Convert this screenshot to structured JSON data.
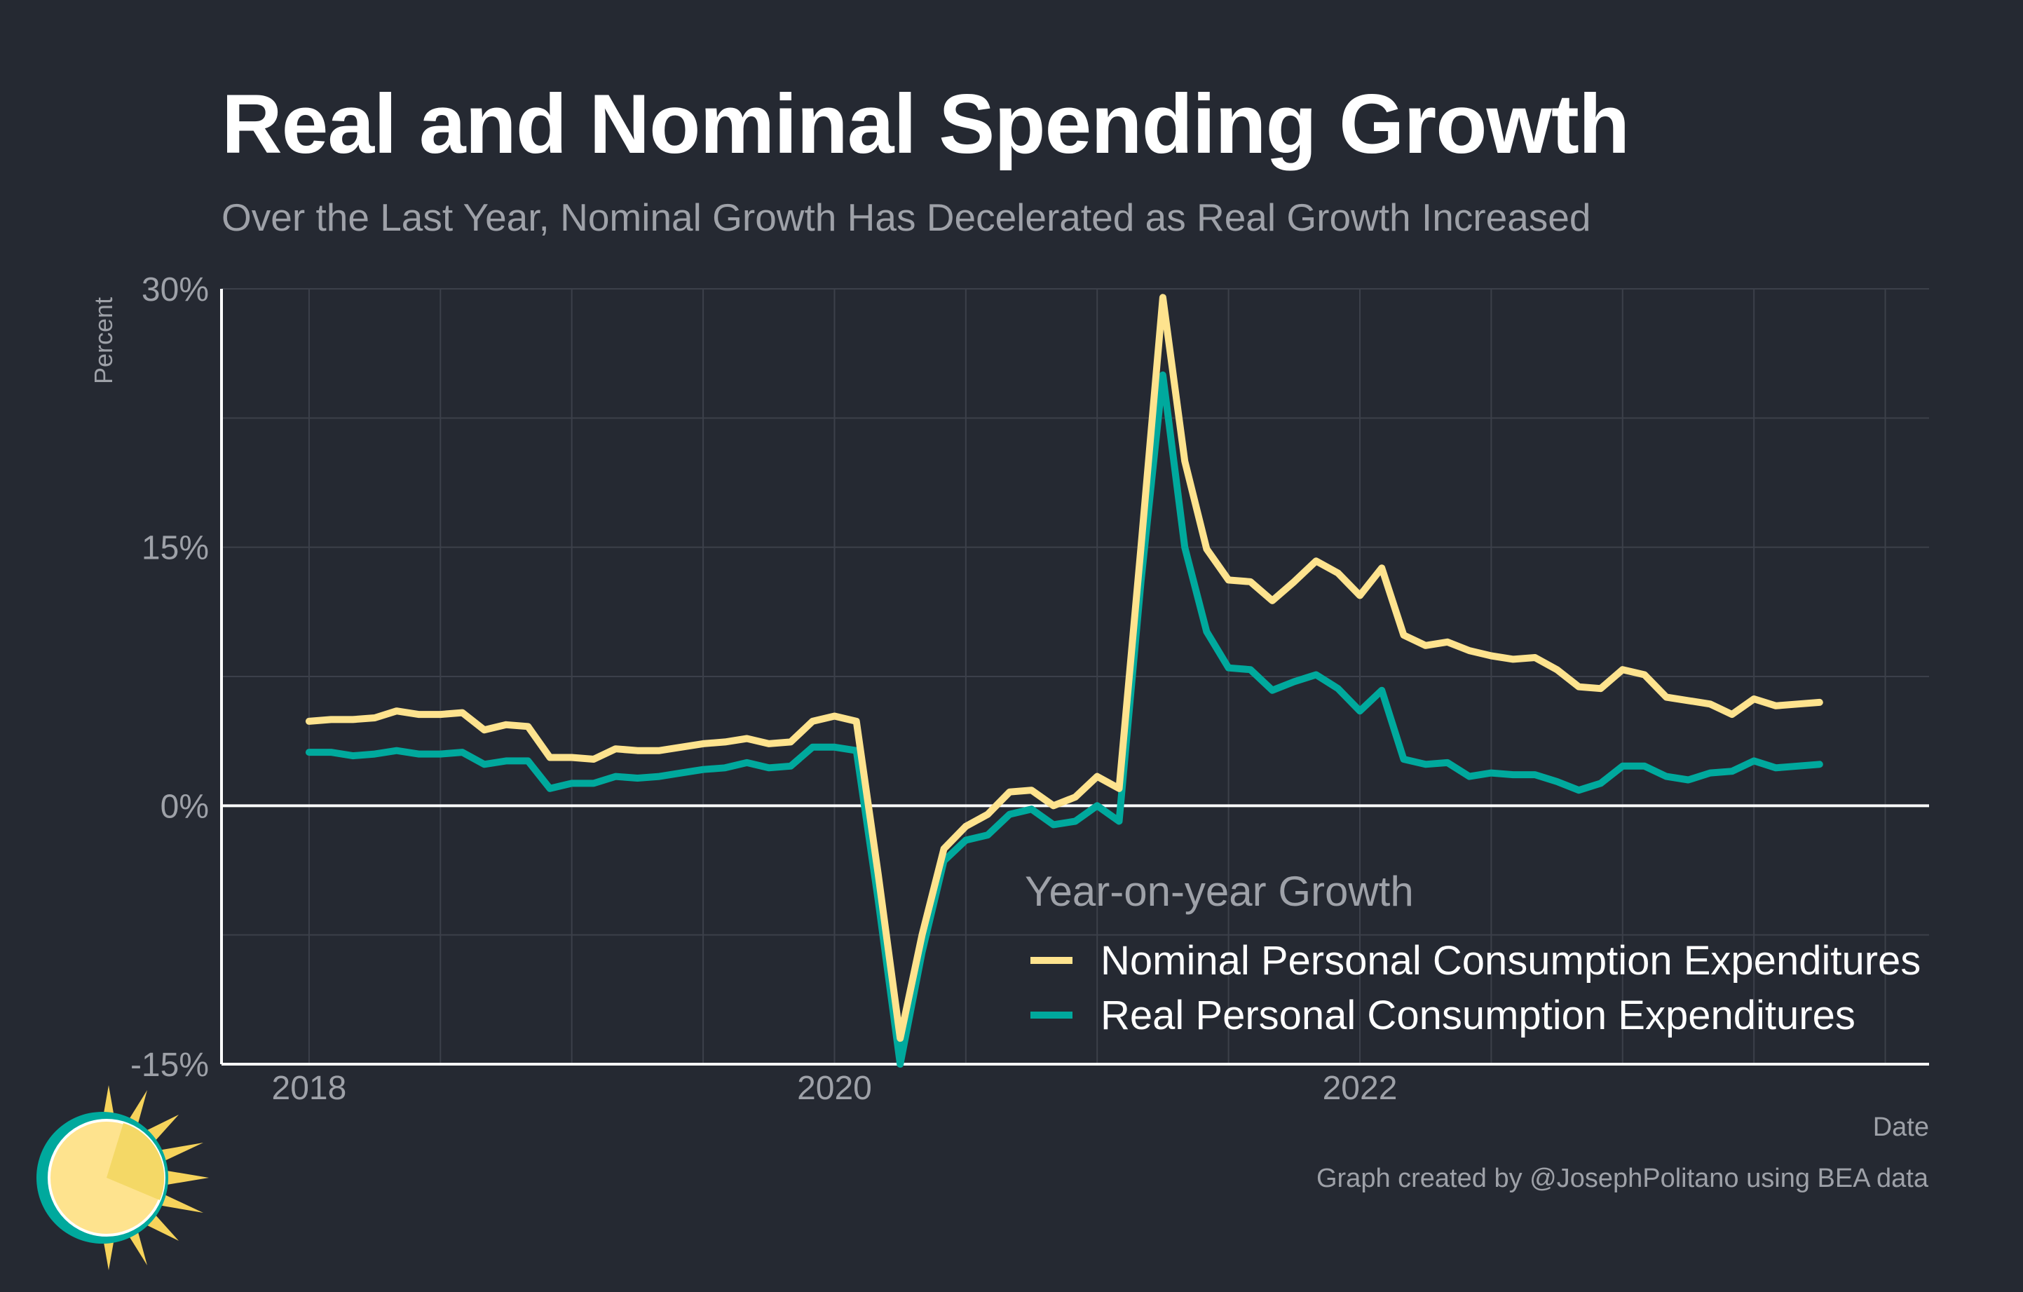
{
  "title": "Real and Nominal Spending Growth",
  "subtitle": "Over the Last Year, Nominal Growth Has Decelerated as Real Growth Increased",
  "caption": "Graph created by @JosephPolitano using BEA data",
  "logo_icon": "sun-icon",
  "colors": {
    "background": "#252932",
    "nominal": "#FEE38E",
    "real": "#00A99D",
    "grid": "#3c404a",
    "zero_line": "#ffffff",
    "text_muted": "#9ea1a8"
  },
  "chart_data": {
    "type": "line",
    "title": "Real and Nominal Spending Growth",
    "subtitle": "Over the Last Year, Nominal Growth Has Decelerated as Real Growth Increased",
    "xlabel": "Date",
    "ylabel": "Percent",
    "ylim": [
      -15,
      30
    ],
    "xlim": [
      "2017-09",
      "2024-03"
    ],
    "y_ticks": [
      {
        "value": 30,
        "label": "30%"
      },
      {
        "value": 15,
        "label": "15%"
      },
      {
        "value": 0,
        "label": "0%"
      },
      {
        "value": -15,
        "label": "-15%"
      }
    ],
    "x_ticks": [
      {
        "date": "2018-01",
        "label": "2018"
      },
      {
        "date": "2020-01",
        "label": "2020"
      },
      {
        "date": "2022-01",
        "label": "2022"
      }
    ],
    "grid": true,
    "legend": {
      "title": "Year-on-year Growth",
      "position": "bottom-right"
    },
    "x": [
      "2018-01",
      "2018-02",
      "2018-03",
      "2018-04",
      "2018-05",
      "2018-06",
      "2018-07",
      "2018-08",
      "2018-09",
      "2018-10",
      "2018-11",
      "2018-12",
      "2019-01",
      "2019-02",
      "2019-03",
      "2019-04",
      "2019-05",
      "2019-06",
      "2019-07",
      "2019-08",
      "2019-09",
      "2019-10",
      "2019-11",
      "2019-12",
      "2020-01",
      "2020-02",
      "2020-03",
      "2020-04",
      "2020-05",
      "2020-06",
      "2020-07",
      "2020-08",
      "2020-09",
      "2020-10",
      "2020-11",
      "2020-12",
      "2021-01",
      "2021-02",
      "2021-03",
      "2021-04",
      "2021-05",
      "2021-06",
      "2021-07",
      "2021-08",
      "2021-09",
      "2021-10",
      "2021-11",
      "2021-12",
      "2022-01",
      "2022-02",
      "2022-03",
      "2022-04",
      "2022-05",
      "2022-06",
      "2022-07",
      "2022-08",
      "2022-09",
      "2022-10",
      "2022-11",
      "2022-12",
      "2023-01",
      "2023-02",
      "2023-03",
      "2023-04",
      "2023-05",
      "2023-06",
      "2023-07",
      "2023-08",
      "2023-09",
      "2023-10"
    ],
    "series": [
      {
        "name": "Nominal Personal Consumption Expenditures",
        "color": "#FEE38E",
        "values": [
          4.9,
          5.0,
          5.0,
          5.1,
          5.5,
          5.3,
          5.3,
          5.4,
          4.4,
          4.7,
          4.6,
          2.8,
          2.8,
          2.7,
          3.3,
          3.2,
          3.2,
          3.4,
          3.6,
          3.7,
          3.9,
          3.6,
          3.7,
          4.9,
          5.2,
          4.9,
          -4.0,
          -13.5,
          -7.5,
          -2.5,
          -1.2,
          -0.5,
          0.8,
          0.9,
          0.0,
          0.5,
          1.7,
          1.0,
          15.0,
          29.5,
          20.0,
          14.9,
          13.1,
          13.0,
          11.9,
          13.0,
          14.2,
          13.5,
          12.2,
          13.8,
          9.9,
          9.3,
          9.5,
          9.0,
          8.7,
          8.5,
          8.6,
          7.9,
          6.9,
          6.8,
          7.9,
          7.6,
          6.3,
          6.1,
          5.9,
          5.3,
          6.2,
          5.8,
          5.9,
          6.0
        ]
      },
      {
        "name": "Real Personal Consumption Expenditures",
        "color": "#00A99D",
        "values": [
          3.1,
          3.1,
          2.9,
          3.0,
          3.2,
          3.0,
          3.0,
          3.1,
          2.4,
          2.6,
          2.6,
          1.0,
          1.3,
          1.3,
          1.7,
          1.6,
          1.7,
          1.9,
          2.1,
          2.2,
          2.5,
          2.2,
          2.3,
          3.4,
          3.4,
          3.2,
          -5.5,
          -15.0,
          -8.5,
          -3.2,
          -2.0,
          -1.7,
          -0.5,
          -0.2,
          -1.1,
          -0.9,
          0.0,
          -0.9,
          13.0,
          25.0,
          15.0,
          10.1,
          8.0,
          7.9,
          6.7,
          7.2,
          7.6,
          6.8,
          5.5,
          6.7,
          2.7,
          2.4,
          2.5,
          1.7,
          1.9,
          1.8,
          1.8,
          1.4,
          0.9,
          1.3,
          2.3,
          2.3,
          1.7,
          1.5,
          1.9,
          2.0,
          2.6,
          2.2,
          2.3,
          2.4
        ]
      }
    ]
  }
}
